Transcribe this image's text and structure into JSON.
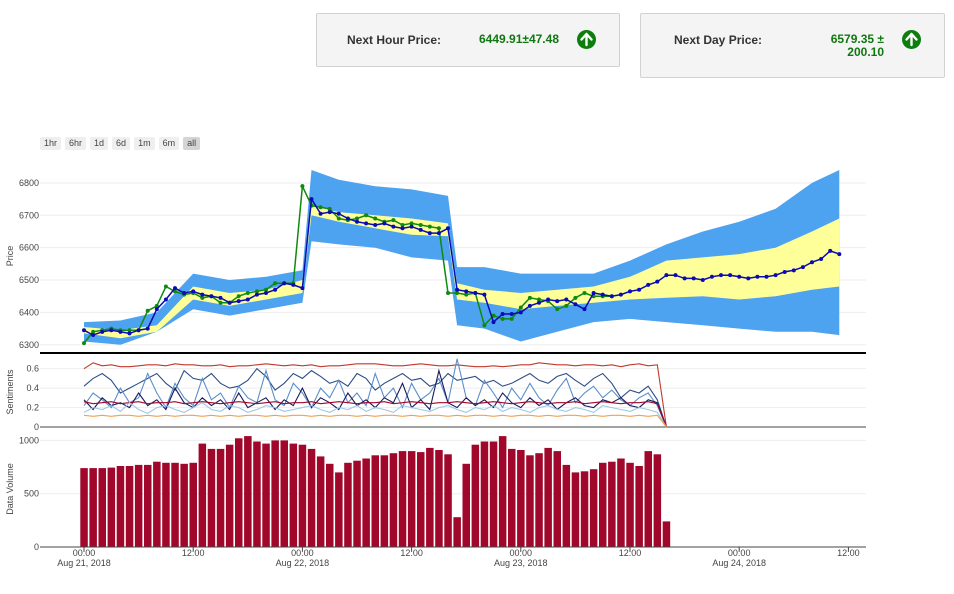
{
  "cards": {
    "next_hour": {
      "label": "Next Hour Price:",
      "value": "6449.91±47.48"
    },
    "next_day": {
      "label": "Next Day Price:",
      "value_line1": "6579.35 ±",
      "value_line2": "200.10"
    }
  },
  "range_buttons": [
    "1hr",
    "6hr",
    "1d",
    "6d",
    "1m",
    "6m",
    "all"
  ],
  "range_active": "all",
  "colors": {
    "outer_band": "#4da3f0",
    "inner_band": "#ffff99",
    "predicted": "#0b0bb5",
    "actual": "#0f8a0f",
    "volume_bar": "#a0072a",
    "divider": "#000000",
    "up_arrow": "#0d7d0d"
  },
  "chart_data": [
    {
      "type": "line",
      "title": "",
      "ylabel": "Price",
      "ylim": [
        6290,
        6840
      ],
      "yticks": [
        6300,
        6400,
        6500,
        6600,
        6700,
        6800
      ],
      "x_range_hours": [
        -4,
        86
      ],
      "series": [
        {
          "name": "",
          "role": "predicted",
          "x": [
            0,
            1,
            2,
            3,
            4,
            5,
            6,
            7,
            8,
            9,
            10,
            11,
            12,
            13,
            14,
            15,
            16,
            17,
            18,
            19,
            20,
            21,
            22,
            23,
            24,
            25,
            26,
            27,
            28,
            29,
            30,
            31,
            32,
            33,
            34,
            35,
            36,
            37,
            38,
            39,
            40,
            41,
            42,
            43,
            44,
            45,
            46,
            47,
            48,
            49,
            50,
            51,
            52,
            53,
            54,
            55,
            56,
            57,
            58,
            59,
            60,
            61,
            62,
            63,
            64,
            65,
            66,
            67,
            68,
            69,
            70,
            71,
            72,
            73,
            74,
            75,
            76,
            77,
            78,
            79,
            80,
            81,
            82,
            83
          ],
          "y": [
            6345,
            6330,
            6340,
            6345,
            6340,
            6335,
            6345,
            6350,
            6410,
            6440,
            6475,
            6460,
            6465,
            6455,
            6450,
            6445,
            6430,
            6435,
            6440,
            6455,
            6460,
            6470,
            6490,
            6485,
            6475,
            6750,
            6705,
            6710,
            6705,
            6690,
            6680,
            6675,
            6670,
            6675,
            6665,
            6660,
            6665,
            6655,
            6645,
            6645,
            6660,
            6470,
            6465,
            6460,
            6455,
            6370,
            6395,
            6395,
            6400,
            6420,
            6430,
            6440,
            6435,
            6440,
            6425,
            6410,
            6460,
            6455,
            6450,
            6455,
            6465,
            6470,
            6485,
            6495,
            6515,
            6515,
            6505,
            6505,
            6500,
            6510,
            6515,
            6515,
            6510,
            6505,
            6510,
            6510,
            6515,
            6525,
            6530,
            6540,
            6555,
            6565,
            6590,
            6580
          ]
        },
        {
          "name": "",
          "role": "actual",
          "x": [
            0,
            1,
            2,
            3,
            4,
            5,
            6,
            7,
            8,
            9,
            10,
            11,
            12,
            13,
            14,
            15,
            16,
            17,
            18,
            19,
            20,
            21,
            22,
            23,
            24,
            25,
            26,
            27,
            28,
            29,
            30,
            31,
            32,
            33,
            34,
            35,
            36,
            37,
            38,
            39,
            40,
            41,
            42,
            43,
            44,
            45,
            46,
            47,
            48,
            49,
            50,
            51,
            52,
            53,
            54,
            55,
            56,
            57,
            58
          ],
          "y": [
            6305,
            6340,
            6345,
            6350,
            6345,
            6345,
            6345,
            6405,
            6420,
            6480,
            6465,
            6455,
            6460,
            6445,
            6450,
            6430,
            6430,
            6450,
            6460,
            6465,
            6470,
            6490,
            6490,
            6490,
            6790,
            6730,
            6725,
            6720,
            6690,
            6685,
            6690,
            6700,
            6690,
            6680,
            6685,
            6670,
            6675,
            6670,
            6665,
            6660,
            6460,
            6460,
            6455,
            6460,
            6360,
            6390,
            6380,
            6380,
            6415,
            6445,
            6440,
            6435,
            6410,
            6420,
            6445,
            6460,
            6450,
            6450,
            6450
          ]
        }
      ],
      "bands": {
        "x": [
          0,
          4,
          8,
          12,
          16,
          20,
          24,
          25,
          28,
          32,
          36,
          40,
          41,
          44,
          48,
          52,
          56,
          60,
          64,
          68,
          72,
          76,
          80,
          83
        ],
        "outer_lower": [
          6310,
          6300,
          6340,
          6410,
          6390,
          6410,
          6430,
          6620,
          6610,
          6600,
          6570,
          6560,
          6360,
          6350,
          6310,
          6340,
          6370,
          6380,
          6370,
          6360,
          6350,
          6340,
          6340,
          6330
        ],
        "outer_upper": [
          6370,
          6375,
          6400,
          6520,
          6500,
          6510,
          6530,
          6840,
          6810,
          6790,
          6780,
          6760,
          6540,
          6540,
          6520,
          6520,
          6520,
          6560,
          6610,
          6650,
          6680,
          6720,
          6800,
          6840
        ],
        "inner_lower": [
          6335,
          6320,
          6340,
          6440,
          6420,
          6440,
          6460,
          6700,
          6680,
          6660,
          6640,
          6635,
          6440,
          6430,
          6410,
          6420,
          6430,
          6440,
          6445,
          6450,
          6440,
          6450,
          6470,
          6480
        ],
        "inner_upper": [
          6355,
          6345,
          6360,
          6480,
          6460,
          6470,
          6500,
          6730,
          6710,
          6700,
          6690,
          6675,
          6490,
          6470,
          6460,
          6470,
          6480,
          6510,
          6560,
          6570,
          6580,
          6600,
          6650,
          6690
        ]
      }
    },
    {
      "type": "line",
      "ylabel": "Sentiments",
      "ylim": [
        0,
        0.72
      ],
      "yticks": [
        0,
        0.2,
        0.4,
        0.6
      ],
      "x_step_hours": 1,
      "series": [
        {
          "name": "",
          "color": "#c0392b",
          "values": [
            0.6,
            0.66,
            0.63,
            0.64,
            0.62,
            0.62,
            0.63,
            0.64,
            0.64,
            0.63,
            0.65,
            0.64,
            0.64,
            0.63,
            0.63,
            0.64,
            0.62,
            0.63,
            0.63,
            0.64,
            0.65,
            0.64,
            0.63,
            0.64,
            0.63,
            0.64,
            0.62,
            0.63,
            0.63,
            0.64,
            0.65,
            0.65,
            0.65,
            0.64,
            0.63,
            0.63,
            0.64,
            0.65,
            0.64,
            0.63,
            0.63,
            0.64,
            0.63,
            0.62,
            0.62,
            0.63,
            0.62,
            0.63,
            0.64,
            0.64,
            0.66,
            0.65,
            0.64,
            0.64,
            0.63,
            0.64,
            0.64,
            0.63,
            0.64,
            0.62,
            0.64,
            0.65,
            0.63,
            0.64,
            0.0
          ]
        },
        {
          "name": "",
          "color": "#2e4e86",
          "values": [
            0.42,
            0.5,
            0.55,
            0.48,
            0.35,
            0.4,
            0.45,
            0.5,
            0.55,
            0.45,
            0.38,
            0.58,
            0.5,
            0.48,
            0.55,
            0.45,
            0.4,
            0.42,
            0.48,
            0.6,
            0.52,
            0.38,
            0.45,
            0.55,
            0.5,
            0.58,
            0.52,
            0.45,
            0.48,
            0.42,
            0.55,
            0.5,
            0.38,
            0.45,
            0.5,
            0.55,
            0.48,
            0.5,
            0.42,
            0.45,
            0.55,
            0.48,
            0.5,
            0.52,
            0.45,
            0.48,
            0.42,
            0.45,
            0.5,
            0.55,
            0.48,
            0.45,
            0.52,
            0.55,
            0.48,
            0.42,
            0.5,
            0.55,
            0.45,
            0.3,
            0.38,
            0.35,
            0.42,
            0.28,
            0.0
          ]
        },
        {
          "name": "",
          "color": "#5b8fc9",
          "values": [
            0.22,
            0.35,
            0.28,
            0.2,
            0.4,
            0.25,
            0.3,
            0.55,
            0.35,
            0.2,
            0.45,
            0.3,
            0.22,
            0.5,
            0.28,
            0.35,
            0.2,
            0.42,
            0.3,
            0.25,
            0.58,
            0.28,
            0.22,
            0.45,
            0.35,
            0.2,
            0.4,
            0.3,
            0.48,
            0.25,
            0.35,
            0.22,
            0.55,
            0.3,
            0.4,
            0.2,
            0.45,
            0.28,
            0.35,
            0.5,
            0.25,
            0.7,
            0.3,
            0.22,
            0.48,
            0.35,
            0.2,
            0.4,
            0.28,
            0.45,
            0.3,
            0.22,
            0.38,
            0.5,
            0.25,
            0.35,
            0.42,
            0.3,
            0.38,
            0.28,
            0.22,
            0.3,
            0.35,
            0.22,
            0.0
          ]
        },
        {
          "name": "",
          "color": "#1a1a5e",
          "values": [
            0.28,
            0.18,
            0.3,
            0.22,
            0.25,
            0.2,
            0.35,
            0.22,
            0.28,
            0.18,
            0.4,
            0.25,
            0.2,
            0.3,
            0.22,
            0.28,
            0.18,
            0.35,
            0.2,
            0.25,
            0.3,
            0.18,
            0.28,
            0.22,
            0.4,
            0.2,
            0.3,
            0.25,
            0.18,
            0.35,
            0.22,
            0.28,
            0.2,
            0.3,
            0.25,
            0.45,
            0.2,
            0.28,
            0.18,
            0.58,
            0.25,
            0.2,
            0.3,
            0.22,
            0.28,
            0.2,
            0.35,
            0.25,
            0.2,
            0.3,
            0.22,
            0.28,
            0.18,
            0.25,
            0.3,
            0.22,
            0.2,
            0.28,
            0.25,
            0.3,
            0.22,
            0.2,
            0.28,
            0.25,
            0.0
          ]
        },
        {
          "name": "",
          "color": "#a0072a",
          "values": [
            0.26,
            0.24,
            0.25,
            0.26,
            0.24,
            0.25,
            0.26,
            0.24,
            0.25,
            0.25,
            0.26,
            0.24,
            0.25,
            0.26,
            0.25,
            0.24,
            0.25,
            0.26,
            0.25,
            0.24,
            0.25,
            0.26,
            0.24,
            0.25,
            0.25,
            0.26,
            0.24,
            0.25,
            0.26,
            0.25,
            0.24,
            0.25,
            0.25,
            0.26,
            0.24,
            0.25,
            0.26,
            0.25,
            0.24,
            0.25,
            0.25,
            0.26,
            0.25,
            0.24,
            0.25,
            0.26,
            0.25,
            0.24,
            0.25,
            0.26,
            0.25,
            0.24,
            0.25,
            0.25,
            0.26,
            0.24,
            0.25,
            0.26,
            0.25,
            0.24,
            0.25,
            0.25,
            0.26,
            0.24,
            0.0
          ]
        },
        {
          "name": "",
          "color": "#9cc9e6",
          "values": [
            0.15,
            0.2,
            0.18,
            0.22,
            0.16,
            0.25,
            0.18,
            0.14,
            0.2,
            0.22,
            0.18,
            0.15,
            0.2,
            0.25,
            0.18,
            0.16,
            0.22,
            0.2,
            0.15,
            0.18,
            0.22,
            0.2,
            0.16,
            0.18,
            0.2,
            0.22,
            0.18,
            0.15,
            0.2,
            0.18,
            0.22,
            0.16,
            0.2,
            0.18,
            0.15,
            0.22,
            0.2,
            0.18,
            0.16,
            0.2,
            0.22,
            0.18,
            0.15,
            0.2,
            0.18,
            0.22,
            0.16,
            0.2,
            0.18,
            0.15,
            0.2,
            0.22,
            0.18,
            0.16,
            0.2,
            0.18,
            0.15,
            0.22,
            0.2,
            0.18,
            0.16,
            0.2,
            0.18,
            0.15,
            0.0
          ]
        },
        {
          "name": "",
          "color": "#f0a050",
          "values": [
            0.12,
            0.11,
            0.12,
            0.11,
            0.12,
            0.12,
            0.11,
            0.12,
            0.11,
            0.12,
            0.11,
            0.12,
            0.12,
            0.11,
            0.12,
            0.11,
            0.12,
            0.11,
            0.12,
            0.12,
            0.11,
            0.12,
            0.11,
            0.12,
            0.12,
            0.11,
            0.12,
            0.11,
            0.12,
            0.12,
            0.11,
            0.12,
            0.11,
            0.12,
            0.12,
            0.11,
            0.12,
            0.11,
            0.12,
            0.12,
            0.11,
            0.12,
            0.11,
            0.12,
            0.12,
            0.11,
            0.12,
            0.11,
            0.12,
            0.12,
            0.11,
            0.12,
            0.11,
            0.12,
            0.12,
            0.11,
            0.12,
            0.11,
            0.12,
            0.12,
            0.11,
            0.12,
            0.11,
            0.12,
            0.0
          ]
        }
      ]
    },
    {
      "type": "bar",
      "ylabel": "Data Volume",
      "ylim": [
        0,
        1060
      ],
      "yticks": [
        0,
        500,
        1000
      ],
      "x_step_hours": 1,
      "values": [
        740,
        740,
        740,
        745,
        760,
        760,
        770,
        770,
        800,
        790,
        790,
        780,
        790,
        970,
        920,
        920,
        960,
        1020,
        1040,
        990,
        970,
        1000,
        1000,
        970,
        960,
        920,
        850,
        780,
        700,
        790,
        810,
        830,
        860,
        860,
        880,
        900,
        900,
        890,
        930,
        910,
        870,
        280,
        780,
        960,
        990,
        990,
        1040,
        920,
        910,
        860,
        880,
        930,
        900,
        770,
        700,
        710,
        730,
        790,
        800,
        830,
        790,
        760,
        900,
        870,
        240
      ]
    },
    {
      "type": "axis",
      "x_tick_labels": [
        "00:00",
        "12:00",
        "00:00",
        "12:00",
        "00:00",
        "12:00",
        "00:00",
        "12:00"
      ],
      "x_date_labels": [
        "Aug 21, 2018",
        "",
        "Aug 22, 2018",
        "",
        "Aug 23, 2018",
        "",
        "Aug 24, 2018",
        ""
      ],
      "x_tick_hours": [
        0,
        12,
        24,
        36,
        48,
        60,
        72,
        84
      ]
    }
  ]
}
